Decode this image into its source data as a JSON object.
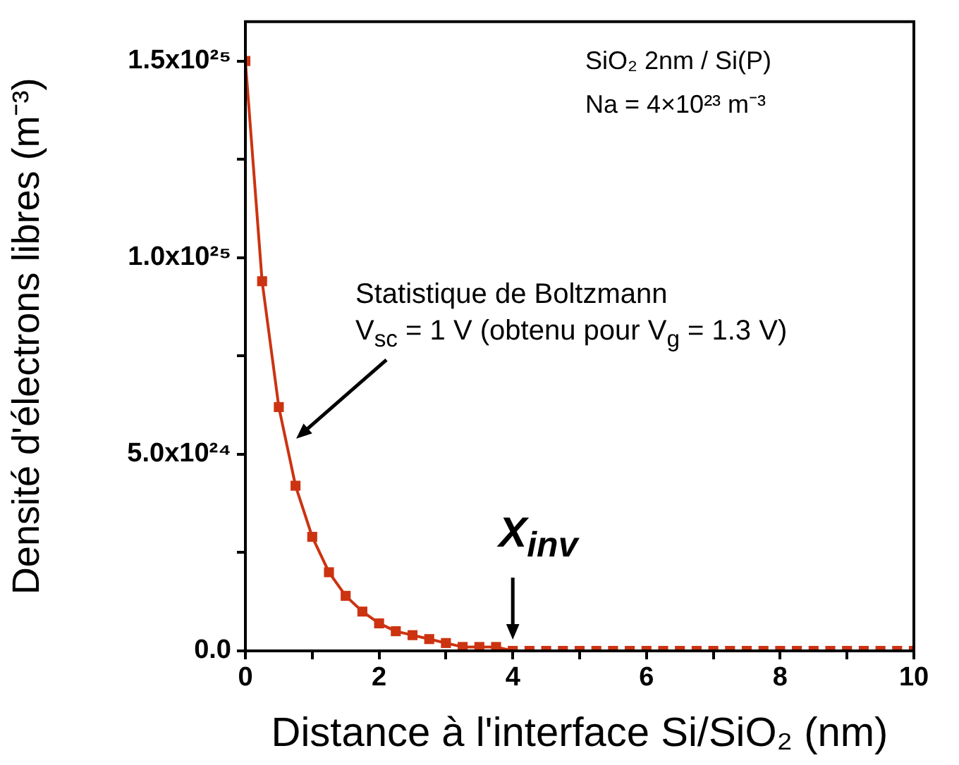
{
  "chart_data": {
    "type": "line",
    "xlabel": "Distance à l'interface Si/SiO₂ (nm)",
    "ylabel": "Densité d'électrons libres (m⁻³)",
    "x": [
      0,
      0.25,
      0.5,
      0.75,
      1,
      1.25,
      1.5,
      1.75,
      2,
      2.25,
      2.5,
      2.75,
      3,
      3.25,
      3.5,
      3.75,
      4,
      4.25,
      4.5,
      4.75,
      5,
      5.25,
      5.5,
      5.75,
      6,
      6.25,
      6.5,
      6.75,
      7,
      7.25,
      7.5,
      7.75,
      8,
      8.25,
      8.5,
      8.75,
      9,
      9.25,
      9.5,
      9.75,
      10
    ],
    "series": [
      {
        "color": "#cc3311",
        "values": [
          1.5e+25,
          9.4e+24,
          6.2e+24,
          4.2e+24,
          2.9e+24,
          2e+24,
          1.4e+24,
          1e+24,
          7e+23,
          5e+23,
          4e+23,
          3e+23,
          2e+23,
          1e+23,
          1e+23,
          1e+23,
          0,
          0,
          0,
          0,
          0,
          0,
          0,
          0,
          0,
          0,
          0,
          0,
          0,
          0,
          0,
          0,
          0,
          0,
          0,
          0,
          0,
          0,
          0,
          0,
          0
        ]
      }
    ],
    "marker": "square",
    "line_style": "solid",
    "grid": false,
    "legend": false,
    "xlim": [
      0,
      10
    ],
    "xticks": [
      0,
      {
        "value": 1,
        "label": null
      },
      2,
      {
        "value": 3,
        "label": null
      },
      4,
      {
        "value": 5,
        "label": null
      },
      6,
      {
        "value": 7,
        "label": null
      },
      8,
      {
        "value": 9,
        "label": null
      },
      10
    ],
    "ylim": [
      0,
      1.6e+25
    ],
    "yticks": [
      {
        "value": 0,
        "label": "0.0"
      },
      {
        "value": 2.5e+24,
        "label": null
      },
      {
        "value": 5e+24,
        "label": "5.0x10²⁴"
      },
      {
        "value": 7.5e+24,
        "label": null
      },
      {
        "value": 1e+25,
        "label": "1.0x10²⁵"
      },
      {
        "value": 1.25e+25,
        "label": null
      },
      {
        "value": 1.5e+25,
        "label": "1.5x10²⁵"
      }
    ],
    "annotations": [
      "SiO₂ 2nm / Si(P)",
      "Na = 4×10²³ m⁻³",
      "Statistique de Boltzmann",
      "V$_{sc}$ = 1 V (obtenu pour V$_{g}$ = 1.3 V)",
      {
        "text": "X$_{inv}$",
        "x": 4,
        "y": 0
      }
    ]
  }
}
